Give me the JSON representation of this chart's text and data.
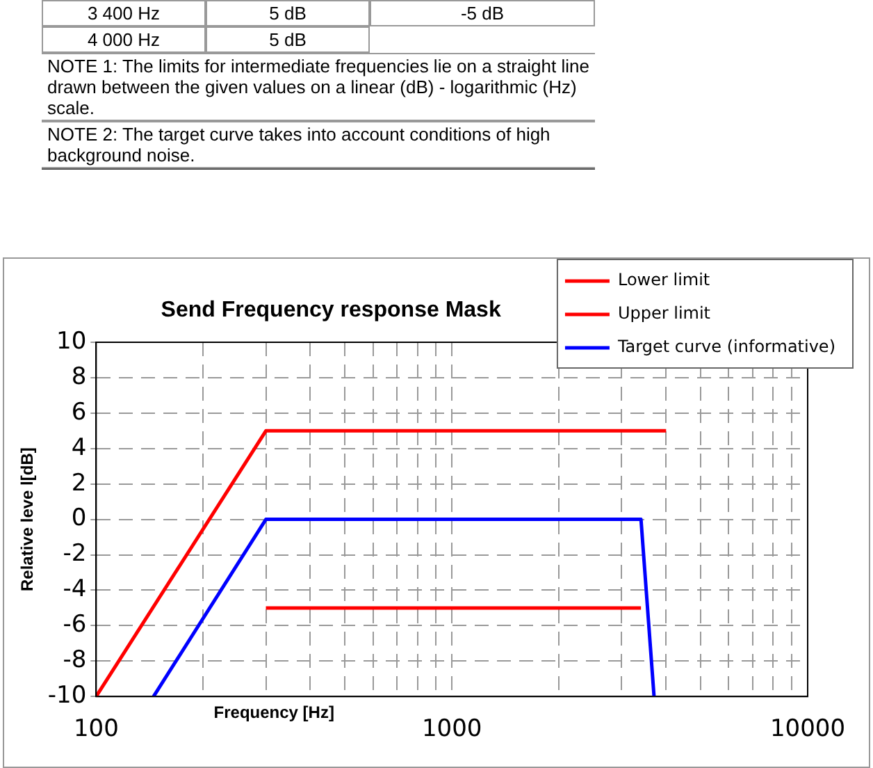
{
  "chart_data": {
    "type": "line",
    "title": "Send Frequency response Mask",
    "xlabel": "Frequency [Hz]",
    "ylabel": "Relative leve l[dB]",
    "annotations": [
      "3 400 Hz",
      "5 dB",
      "-5 dB",
      "4 000 Hz",
      "5 dB",
      "NOTE 1:   The limits for intermediate frequencies lie on a straight line drawn between the given values on a linear (dB) - logarithmic (Hz) scale.",
      "NOTE 2:   The target curve takes into account conditions of high background noise."
    ],
    "log": "x",
    "xlim": [
      100,
      10000
    ],
    "xticks": [
      100,
      {
        "value": 200,
        "label": null
      },
      {
        "value": 300,
        "label": null
      },
      {
        "value": 400,
        "label": null
      },
      {
        "value": 500,
        "label": null
      },
      {
        "value": 600,
        "label": null
      },
      {
        "value": 700,
        "label": null
      },
      {
        "value": 800,
        "label": null
      },
      {
        "value": 900,
        "label": null
      },
      1000,
      {
        "value": 2000,
        "label": null
      },
      {
        "value": 3000,
        "label": null
      },
      {
        "value": 4000,
        "label": null
      },
      {
        "value": 5000,
        "label": null
      },
      {
        "value": 6000,
        "label": null
      },
      {
        "value": 7000,
        "label": null
      },
      {
        "value": 8000,
        "label": null
      },
      {
        "value": 9000,
        "label": null
      },
      10000
    ],
    "ylim": [
      -10,
      10
    ],
    "yticks": [
      -10,
      -8,
      -6,
      -4,
      -2,
      0,
      2,
      4,
      6,
      8,
      10
    ],
    "grid": true,
    "legend": "top right",
    "line_style": "solid",
    "marker": "none",
    "series": [
      {
        "name": "Lower limit",
        "color": "#ff0000",
        "x": [
          300,
          3400
        ],
        "values": [
          -5,
          -5
        ]
      },
      {
        "name": "Upper limit",
        "color": "#ff0000",
        "x": [
          100,
          300,
          4000
        ],
        "values": [
          -10,
          5,
          5
        ]
      },
      {
        "name": "Target curve (informative)",
        "color": "#0000ff",
        "x": [
          145,
          300,
          3400,
          3700
        ],
        "values": [
          -10,
          0,
          0,
          -10
        ]
      }
    ]
  }
}
